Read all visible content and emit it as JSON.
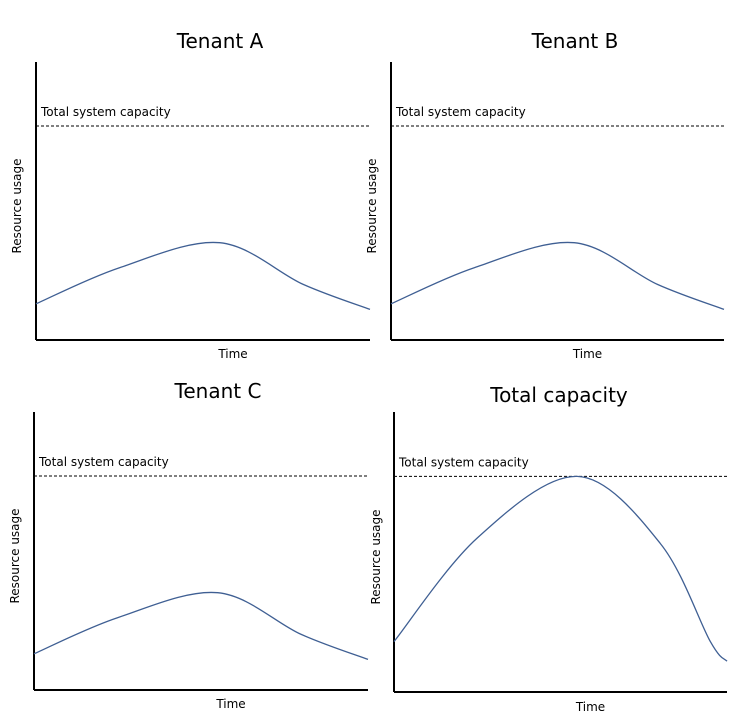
{
  "chart_data": [
    {
      "type": "line",
      "title": "Tenant A",
      "xlabel": "Time",
      "ylabel": "Resource usage",
      "ylim": [
        0,
        1
      ],
      "xlim": [
        0,
        1
      ],
      "capacity_label": "Total system capacity",
      "capacity_level": 0.77,
      "series": [
        {
          "x": [
            0,
            0.25,
            0.55,
            0.8,
            1.0
          ],
          "y": [
            0.13,
            0.26,
            0.35,
            0.2,
            0.11
          ]
        }
      ]
    },
    {
      "type": "line",
      "title": "Tenant B",
      "xlabel": "Time",
      "ylabel": "Resource usage",
      "ylim": [
        0,
        1
      ],
      "xlim": [
        0,
        1
      ],
      "capacity_label": "Total system capacity",
      "capacity_level": 0.77,
      "series": [
        {
          "x": [
            0,
            0.25,
            0.55,
            0.8,
            1.0
          ],
          "y": [
            0.13,
            0.26,
            0.35,
            0.2,
            0.11
          ]
        }
      ]
    },
    {
      "type": "line",
      "title": "Tenant C",
      "xlabel": "Time",
      "ylabel": "Resource usage",
      "ylim": [
        0,
        1
      ],
      "xlim": [
        0,
        1
      ],
      "capacity_label": "Total system capacity",
      "capacity_level": 0.77,
      "series": [
        {
          "x": [
            0,
            0.25,
            0.55,
            0.8,
            1.0
          ],
          "y": [
            0.13,
            0.26,
            0.35,
            0.2,
            0.11
          ]
        }
      ]
    },
    {
      "type": "line",
      "title": "Total capacity",
      "xlabel": "Time",
      "ylabel": "Resource usage",
      "ylim": [
        0,
        1
      ],
      "xlim": [
        0,
        1
      ],
      "capacity_label": "Total system capacity",
      "capacity_level": 0.77,
      "series": [
        {
          "x": [
            0,
            0.25,
            0.55,
            0.8,
            0.95,
            1.0
          ],
          "y": [
            0.18,
            0.55,
            0.77,
            0.53,
            0.18,
            0.11
          ]
        }
      ]
    }
  ]
}
